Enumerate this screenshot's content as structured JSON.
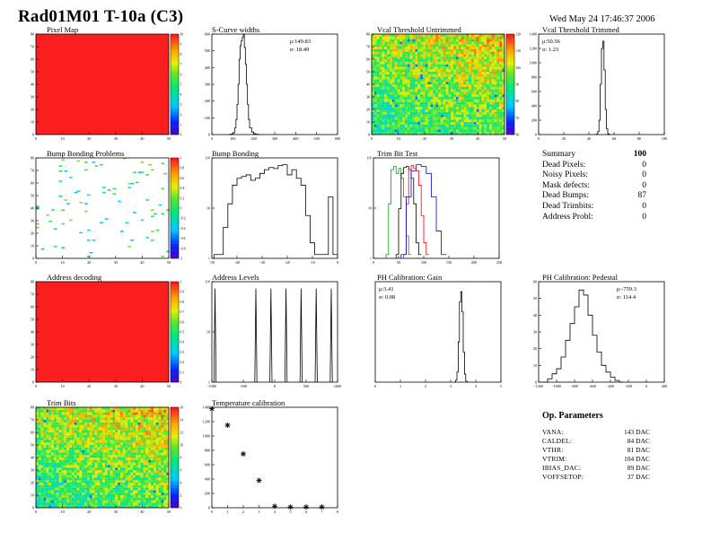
{
  "header": {
    "title": "Rad01M01 T-10a (C3)",
    "date": "Wed May 24 17:46:37 2006"
  },
  "panels": {
    "pixel_map": {
      "title": "Pixel Map"
    },
    "scurve": {
      "title": "S-Curve widths",
      "stat_mu": "μ:149.83",
      "stat_sigma": "σ: 18.49"
    },
    "vcal_untrimmed": {
      "title": "Vcal Threshold Untrimmed"
    },
    "vcal_trimmed": {
      "title": "Vcal Threshold Trimmed",
      "stat_mu": "μ:50.56",
      "stat_sigma": "σ: 1.23"
    },
    "bump_problems": {
      "title": "Bump Bonding Problems"
    },
    "bump_bonding": {
      "title": "Bump Bonding"
    },
    "trim_bit_test": {
      "title": "Trim Bit Test"
    },
    "address_decoding": {
      "title": "Address decoding"
    },
    "address_levels": {
      "title": "Address Levels"
    },
    "ph_gain": {
      "title": "PH Calibration: Gain",
      "stat_mu": "μ:3.41",
      "stat_sigma": "σ: 0.08"
    },
    "ph_pedestal": {
      "title": "PH Calibration: Pedestal",
      "stat_mu": "μ:-759.3",
      "stat_sigma": "σ: 114.4"
    },
    "trim_bits": {
      "title": "Trim Bits"
    },
    "temperature": {
      "title": "Temperature calibration"
    }
  },
  "summary": {
    "title": "Summary",
    "total": "100",
    "rows": [
      {
        "label": "Dead Pixels:",
        "value": "0"
      },
      {
        "label": "Noisy Pixels:",
        "value": "0"
      },
      {
        "label": "Mask defects:",
        "value": "0"
      },
      {
        "label": "Dead Bumps:",
        "value": "87"
      },
      {
        "label": "Dead Trimbits:",
        "value": "0"
      },
      {
        "label": "Address Probl:",
        "value": "0"
      }
    ]
  },
  "op_parameters": {
    "title": "Op. Parameters",
    "rows": [
      {
        "label": "VANA:",
        "value": "143 DAC"
      },
      {
        "label": "CALDEL:",
        "value": "84 DAC"
      },
      {
        "label": "VTHR:",
        "value": "81 DAC"
      },
      {
        "label": "VTRIM:",
        "value": "104 DAC"
      },
      {
        "label": "IBIAS_DAC:",
        "value": "89 DAC"
      },
      {
        "label": "VOFFSETOP:",
        "value": "37 DAC"
      }
    ]
  },
  "chart_data": [
    {
      "id": "pixel_map",
      "type": "heatmap",
      "xlim": [
        0,
        52
      ],
      "ylim": [
        0,
        80
      ],
      "xticks": [
        "0",
        "10",
        "20",
        "30",
        "40",
        "50"
      ],
      "yticks": [
        "0",
        "10",
        "20",
        "30",
        "40",
        "50",
        "60",
        "70",
        "80"
      ],
      "zlim": [
        0,
        10
      ],
      "zticks": [
        "0",
        "1",
        "2",
        "3",
        "4",
        "5",
        "6",
        "7",
        "8",
        "9",
        "10"
      ],
      "fill": "uniform",
      "value": 10
    },
    {
      "id": "scurve",
      "type": "line",
      "xlim": [
        0,
        600
      ],
      "xticks": [
        "0",
        "100",
        "200",
        "300",
        "400",
        "500",
        "600"
      ],
      "ylim": [
        0,
        600
      ],
      "yticks": [
        "0",
        "100",
        "200",
        "300",
        "400",
        "500",
        "600"
      ],
      "x": [
        80,
        90,
        100,
        110,
        115,
        120,
        125,
        130,
        135,
        140,
        145,
        150,
        155,
        160,
        165,
        170,
        175,
        180,
        190,
        200,
        210,
        220
      ],
      "y": [
        0,
        3,
        10,
        40,
        90,
        180,
        300,
        450,
        530,
        560,
        580,
        600,
        520,
        420,
        300,
        180,
        90,
        40,
        15,
        5,
        2,
        0
      ]
    },
    {
      "id": "vcal_untrimmed",
      "type": "heatmap",
      "xlim": [
        0,
        52
      ],
      "ylim": [
        0,
        80
      ],
      "xticks": [
        "0",
        "10",
        "20",
        "30",
        "40",
        "50"
      ],
      "yticks": [
        "0",
        "10",
        "20",
        "30",
        "40",
        "50",
        "60",
        "70",
        "80"
      ],
      "zlim": [
        60,
        120
      ],
      "zticks": [
        "60",
        "70",
        "80",
        "90",
        "100",
        "110",
        "120"
      ],
      "fill": "noisy-gradient"
    },
    {
      "id": "vcal_trimmed",
      "type": "line",
      "xlim": [
        0,
        100
      ],
      "xticks": [
        "0",
        "20",
        "40",
        "60",
        "80",
        "100"
      ],
      "ylim": [
        0,
        1400
      ],
      "yticks": [
        "0",
        "200",
        "400",
        "600",
        "800",
        "1000",
        "1200",
        "1400"
      ],
      "x": [
        45,
        46,
        47,
        48,
        49,
        50,
        51,
        52,
        53,
        54,
        55,
        56
      ],
      "y": [
        0,
        5,
        40,
        200,
        700,
        1200,
        1300,
        900,
        350,
        80,
        10,
        0
      ]
    },
    {
      "id": "bump_problems",
      "type": "heatmap",
      "xlim": [
        0,
        52
      ],
      "ylim": [
        0,
        80
      ],
      "xticks": [
        "0",
        "10",
        "20",
        "30",
        "40",
        "50"
      ],
      "yticks": [
        "0",
        "10",
        "20",
        "30",
        "40",
        "50",
        "60",
        "70",
        "80"
      ],
      "zlim": [
        0,
        1
      ],
      "zticks": [
        "-1",
        "-0.8",
        "-0.6",
        "-0.4",
        "-0.2",
        "0",
        "0.2",
        "0.4",
        "0.6",
        "0.8",
        "1"
      ],
      "fill": "sparse",
      "count": 87
    },
    {
      "id": "bump_bonding",
      "type": "line",
      "yscale": "log",
      "xlim": [
        -50,
        5
      ],
      "xticks": [
        "-50",
        "-40",
        "-30",
        "-20",
        "-10",
        "0"
      ],
      "ylim": [
        0.8,
        300
      ],
      "yticks": [
        "1",
        "10",
        "10²"
      ],
      "x": [
        -49,
        -47,
        -45,
        -43,
        -41,
        -39,
        -37,
        -35,
        -33,
        -31,
        -29,
        -27,
        -25,
        -23,
        -21,
        -19,
        -17,
        -15,
        -13,
        -11,
        -9,
        -7,
        -5,
        -3,
        -1,
        1,
        3
      ],
      "y": [
        1,
        1,
        5,
        20,
        60,
        90,
        100,
        110,
        80,
        90,
        120,
        150,
        170,
        160,
        190,
        200,
        110,
        150,
        90,
        60,
        10,
        2,
        1,
        1,
        1,
        30,
        1
      ]
    },
    {
      "id": "trim_bit_test",
      "type": "line",
      "yscale": "log",
      "xlim": [
        0,
        250
      ],
      "xticks": [
        "0",
        "50",
        "100",
        "150",
        "200",
        "250"
      ],
      "ylim": [
        0.8,
        300
      ],
      "yticks": [
        "1",
        "10",
        "10²"
      ],
      "series": [
        {
          "color": "#00a000",
          "x": [
            25,
            30,
            35,
            40,
            45,
            50,
            55,
            60,
            65,
            70
          ],
          "y": [
            1,
            20,
            150,
            180,
            120,
            160,
            90,
            30,
            3,
            1
          ]
        },
        {
          "color": "#000000",
          "x": [
            45,
            50,
            55,
            60,
            65,
            70,
            75,
            80,
            85,
            90
          ],
          "y": [
            1,
            15,
            120,
            170,
            180,
            150,
            90,
            20,
            2,
            1
          ]
        },
        {
          "color": "#ff0000",
          "x": [
            60,
            65,
            70,
            75,
            80,
            85,
            90,
            95,
            100,
            105
          ],
          "y": [
            1,
            20,
            150,
            190,
            160,
            140,
            60,
            10,
            2,
            1
          ]
        },
        {
          "color": "#0000ff",
          "x": [
            55,
            65,
            75,
            85,
            95,
            105,
            115,
            125,
            135
          ],
          "y": [
            1,
            30,
            140,
            200,
            180,
            120,
            30,
            4,
            1
          ]
        }
      ]
    },
    {
      "id": "address_decoding",
      "type": "heatmap",
      "xlim": [
        0,
        52
      ],
      "ylim": [
        0,
        80
      ],
      "xticks": [
        "0",
        "10",
        "20",
        "30",
        "40",
        "50"
      ],
      "yticks": [
        "0",
        "10",
        "20",
        "30",
        "40",
        "50",
        "60",
        "70",
        "80"
      ],
      "zlim": [
        0,
        1
      ],
      "zticks": [
        "0",
        "0.1",
        "0.2",
        "0.3",
        "0.4",
        "0.5",
        "0.6",
        "0.7",
        "0.8",
        "0.9",
        "1"
      ],
      "fill": "uniform",
      "value": 1
    },
    {
      "id": "address_levels",
      "type": "line",
      "yscale": "log",
      "xlim": [
        -1000,
        1000
      ],
      "xticks": [
        "-1000",
        "-500",
        "0",
        "500",
        "1000"
      ],
      "ylim": [
        0.8,
        300
      ],
      "yticks": [
        "1",
        "10",
        "10²"
      ],
      "peaks": [
        -950,
        -300,
        -60,
        180,
        420,
        660,
        900
      ],
      "peak_height": 200
    },
    {
      "id": "ph_gain",
      "type": "line",
      "xlim": [
        0,
        5
      ],
      "xticks": [
        "0",
        "1",
        "2",
        "3",
        "4",
        "5"
      ],
      "ylim": [
        0,
        1000
      ],
      "yticks": [],
      "x": [
        3.15,
        3.2,
        3.25,
        3.3,
        3.35,
        3.4,
        3.45,
        3.5,
        3.55,
        3.6,
        3.65
      ],
      "y": [
        0,
        20,
        100,
        400,
        800,
        900,
        700,
        300,
        80,
        10,
        0
      ]
    },
    {
      "id": "ph_pedestal",
      "type": "line",
      "xlim": [
        -1200,
        200
      ],
      "xticks": [
        "-1200",
        "-1000",
        "-800",
        "-600",
        "-400",
        "-200",
        "0",
        "200"
      ],
      "ylim": [
        0,
        60
      ],
      "yticks": [
        "0",
        "10",
        "20",
        "30",
        "40",
        "50",
        "60"
      ],
      "x": [
        -1150,
        -1100,
        -1050,
        -1000,
        -950,
        -900,
        -850,
        -800,
        -750,
        -700,
        -650,
        -600,
        -550,
        -500,
        -450,
        -400,
        -350,
        -300
      ],
      "y": [
        0,
        2,
        5,
        8,
        15,
        25,
        35,
        45,
        55,
        52,
        40,
        28,
        18,
        10,
        6,
        3,
        1,
        0
      ]
    },
    {
      "id": "trim_bits",
      "type": "heatmap",
      "xlim": [
        0,
        52
      ],
      "ylim": [
        0,
        80
      ],
      "xticks": [
        "0",
        "10",
        "20",
        "30",
        "40",
        "50"
      ],
      "yticks": [
        "0",
        "10",
        "20",
        "30",
        "40",
        "50",
        "60",
        "70",
        "80"
      ],
      "zlim": [
        0,
        16
      ],
      "zticks": [
        "0",
        "2",
        "4",
        "6",
        "8",
        "10",
        "12",
        "14",
        "16"
      ],
      "fill": "noisy-gradient"
    },
    {
      "id": "temperature",
      "type": "scatter",
      "xlim": [
        0,
        8
      ],
      "xticks": [
        "0",
        "1",
        "2",
        "3",
        "4",
        "5",
        "6",
        "7",
        "8"
      ],
      "ylim": [
        0,
        1400
      ],
      "yticks": [
        "0",
        "200",
        "400",
        "600",
        "800",
        "1000",
        "1200",
        "1400"
      ],
      "x": [
        0,
        1,
        2,
        3,
        4,
        5,
        6,
        7
      ],
      "y": [
        1380,
        1150,
        750,
        380,
        20,
        10,
        10,
        10
      ]
    }
  ]
}
